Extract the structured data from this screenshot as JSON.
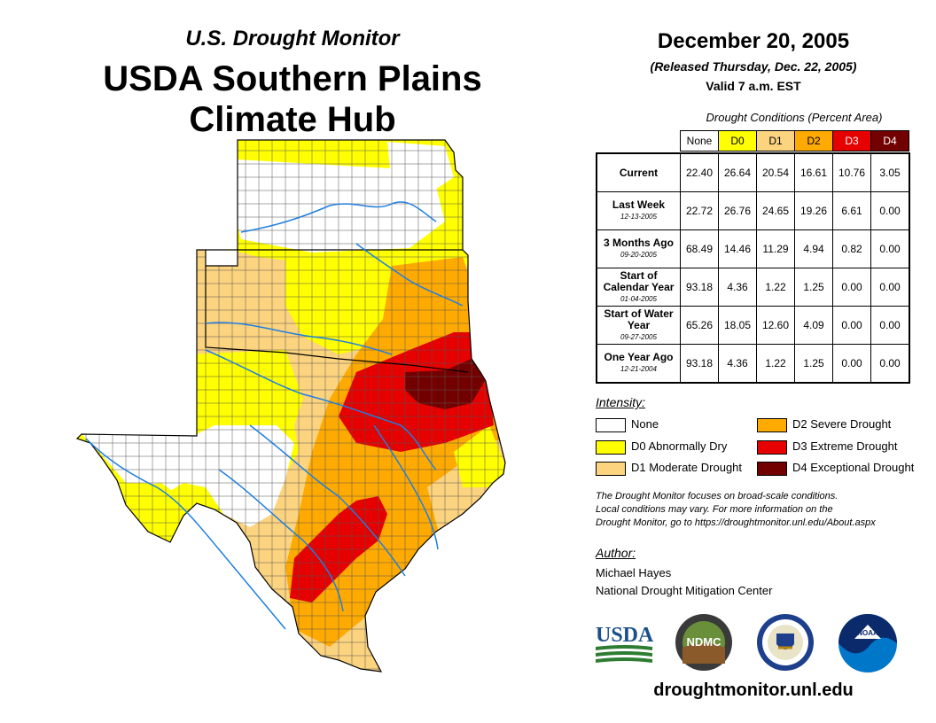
{
  "header": {
    "subtitle": "U.S. Drought Monitor",
    "title_line1": "USDA Southern Plains",
    "title_line2": "Climate Hub"
  },
  "report": {
    "date": "December 20, 2005",
    "released": "(Released Thursday, Dec. 22, 2005)",
    "valid": "Valid 7 a.m. EST"
  },
  "table": {
    "caption": "Drought Conditions (Percent Area)",
    "columns": [
      "None",
      "D0",
      "D1",
      "D2",
      "D3",
      "D4"
    ],
    "column_colors": [
      "#ffffff",
      "#ffff00",
      "#fcd37f",
      "#ffaa00",
      "#e60000",
      "#730000"
    ],
    "rows": [
      {
        "label": "Current",
        "date": "",
        "values": [
          "22.40",
          "26.64",
          "20.54",
          "16.61",
          "10.76",
          "3.05"
        ]
      },
      {
        "label": "Last Week",
        "date": "12-13-2005",
        "values": [
          "22.72",
          "26.76",
          "24.65",
          "19.26",
          "6.61",
          "0.00"
        ]
      },
      {
        "label": "3 Months Ago",
        "date": "09-20-2005",
        "values": [
          "68.49",
          "14.46",
          "11.29",
          "4.94",
          "0.82",
          "0.00"
        ]
      },
      {
        "label": "Start of Calendar Year",
        "date": "01-04-2005",
        "values": [
          "93.18",
          "4.36",
          "1.22",
          "1.25",
          "0.00",
          "0.00"
        ]
      },
      {
        "label": "Start of Water Year",
        "date": "09-27-2005",
        "values": [
          "65.26",
          "18.05",
          "12.60",
          "4.09",
          "0.00",
          "0.00"
        ]
      },
      {
        "label": "One Year Ago",
        "date": "12-21-2004",
        "values": [
          "93.18",
          "4.36",
          "1.22",
          "1.25",
          "0.00",
          "0.00"
        ]
      }
    ]
  },
  "legend": {
    "heading": "Intensity:",
    "items": [
      {
        "label": "None",
        "color": "#ffffff"
      },
      {
        "label": "D0 Abnormally Dry",
        "color": "#ffff00"
      },
      {
        "label": "D1 Moderate Drought",
        "color": "#fcd37f"
      },
      {
        "label": "D2 Severe Drought",
        "color": "#ffaa00"
      },
      {
        "label": "D3 Extreme Drought",
        "color": "#e60000"
      },
      {
        "label": "D4 Exceptional Drought",
        "color": "#730000"
      }
    ]
  },
  "note": {
    "line1": "The Drought Monitor focuses on broad-scale conditions.",
    "line2": "Local conditions may vary. For more information on the",
    "line3": "Drought Monitor, go to https://droughtmonitor.unl.edu/About.aspx"
  },
  "author": {
    "heading": "Author:",
    "name": "Michael Hayes",
    "org": "National Drought Mitigation Center"
  },
  "logos": {
    "usda": "USDA",
    "ndmc": "NDMC",
    "noaa": "NOAA"
  },
  "footer": {
    "url": "droughtmonitor.unl.edu"
  },
  "map": {
    "states": [
      "Kansas",
      "Oklahoma",
      "Texas"
    ]
  }
}
